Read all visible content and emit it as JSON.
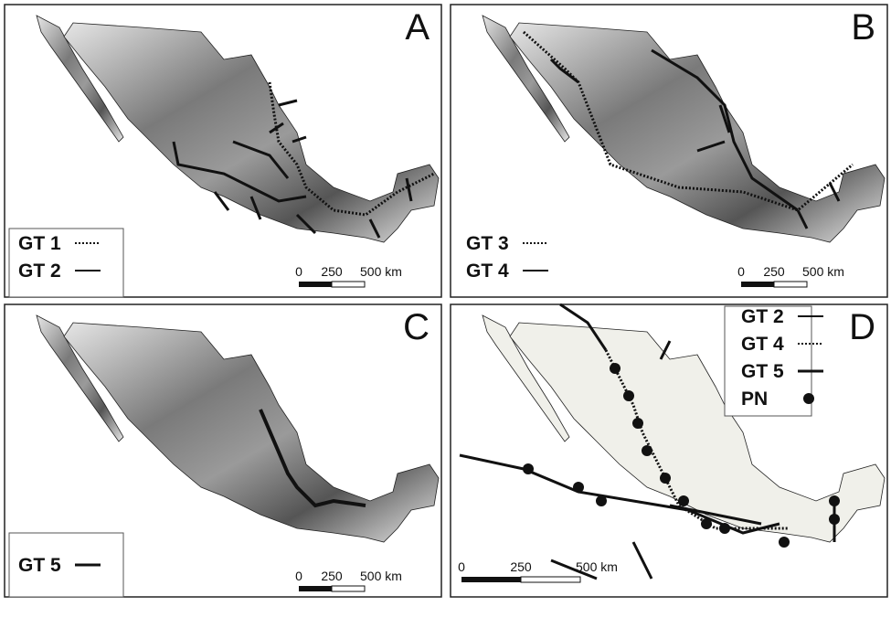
{
  "panels": [
    {
      "label": "A",
      "legend": [
        "GT 1",
        "GT 2"
      ],
      "scale": [
        "0",
        "250",
        "500 km"
      ]
    },
    {
      "label": "B",
      "legend": [
        "GT 3",
        "GT 4"
      ],
      "scale": [
        "0",
        "250",
        "500 km"
      ]
    },
    {
      "label": "C",
      "legend": [
        "GT 5"
      ],
      "scale": [
        "0",
        "250",
        "500 km"
      ]
    },
    {
      "label": "D",
      "legend": [
        "GT 2",
        "GT 4",
        "GT 5",
        "PN"
      ],
      "scale": [
        "0",
        "250",
        "500 km"
      ]
    }
  ]
}
